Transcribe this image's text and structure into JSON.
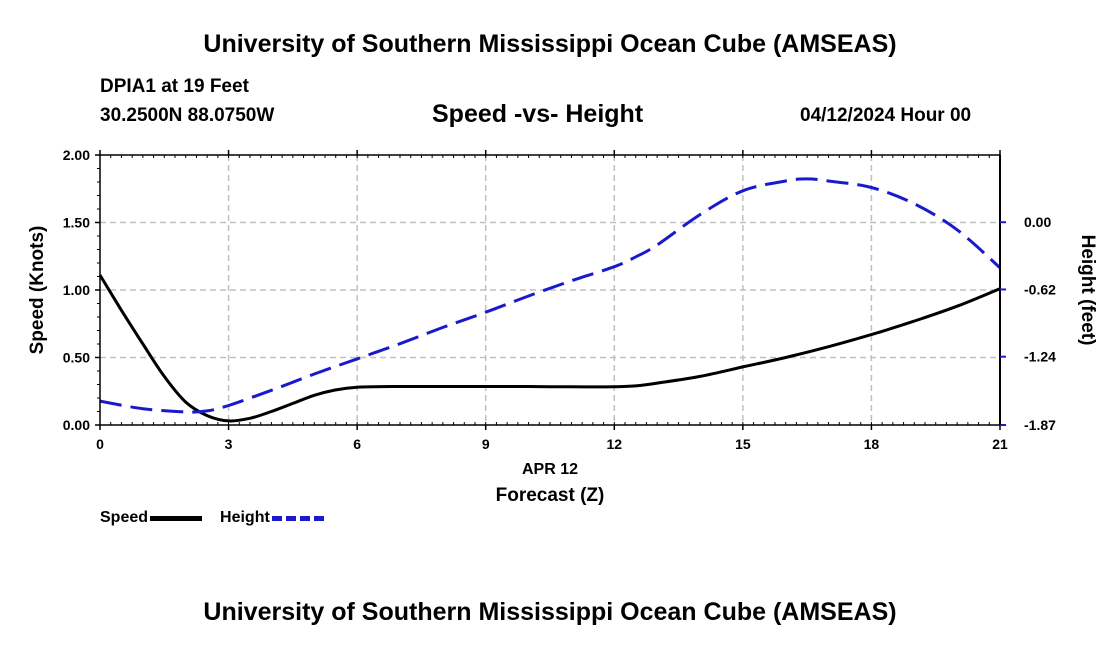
{
  "header": {
    "title": "University of Southern Mississippi Ocean Cube (AMSEAS)",
    "station": "DPIA1 at 19 Feet",
    "coords": "30.2500N  88.0750W",
    "subtitle": "Speed -vs- Height",
    "datetime": "04/12/2024 Hour 00"
  },
  "footer": {
    "title": "University of Southern Mississippi Ocean Cube (AMSEAS)"
  },
  "legend": {
    "speed": "Speed",
    "height": "Height"
  },
  "colors": {
    "speed": "#000000",
    "height": "#1a1acc",
    "grid": "#c0c0c0"
  },
  "chart_data": {
    "type": "line",
    "title": "Speed -vs- Height",
    "xlabel": "Forecast (Z)",
    "date_label": "APR 12",
    "ylabel_left": "Speed (Knots)",
    "ylabel_right": "Height (feet)",
    "xlim": [
      0,
      21
    ],
    "ylim_left": [
      0,
      2
    ],
    "ylim_right": [
      -1.87,
      0.62
    ],
    "x_ticks": [
      "0",
      "3",
      "6",
      "9",
      "12",
      "15",
      "18",
      "21"
    ],
    "y_left_ticks": [
      "0.00",
      "0.50",
      "1.00",
      "1.50",
      "2.00"
    ],
    "y_right_ticks": [
      "-1.87",
      "-1.24",
      "-0.62",
      "0.00"
    ],
    "y_right_tick_values": [
      -1.87,
      -1.24,
      -0.62,
      0.0
    ],
    "grid": true,
    "legend_position": "bottom-left",
    "series": [
      {
        "name": "Speed",
        "axis": "left",
        "style": "solid",
        "x": [
          0,
          0.5,
          1,
          1.5,
          2,
          2.5,
          3,
          3.5,
          4,
          4.5,
          5,
          5.5,
          6,
          7,
          8,
          9,
          10,
          11,
          12,
          12.5,
          13,
          14,
          15,
          16,
          17,
          18,
          19,
          20,
          21
        ],
        "values": [
          1.11,
          0.85,
          0.6,
          0.36,
          0.17,
          0.07,
          0.03,
          0.05,
          0.1,
          0.16,
          0.22,
          0.26,
          0.28,
          0.285,
          0.285,
          0.285,
          0.285,
          0.283,
          0.283,
          0.29,
          0.31,
          0.36,
          0.43,
          0.5,
          0.58,
          0.67,
          0.77,
          0.88,
          1.01
        ]
      },
      {
        "name": "Height",
        "axis": "right",
        "style": "dashed",
        "x": [
          0,
          1,
          2,
          2.5,
          3,
          4,
          5,
          6,
          7,
          8,
          9,
          10,
          11,
          12,
          12.5,
          13,
          14,
          15,
          16,
          16.5,
          17,
          18,
          19,
          20,
          21
        ],
        "values": [
          -1.65,
          -1.72,
          -1.75,
          -1.74,
          -1.69,
          -1.55,
          -1.4,
          -1.26,
          -1.12,
          -0.97,
          -0.83,
          -0.68,
          -0.54,
          -0.41,
          -0.32,
          -0.21,
          0.07,
          0.29,
          0.38,
          0.4,
          0.38,
          0.32,
          0.17,
          -0.07,
          -0.42
        ]
      }
    ]
  }
}
